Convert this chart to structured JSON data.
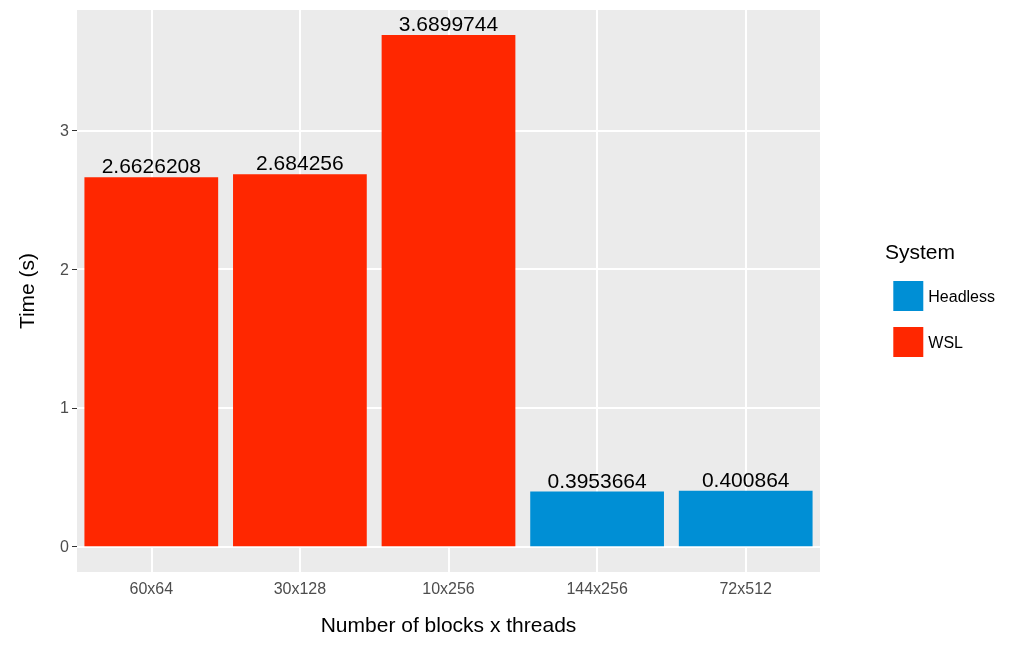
{
  "chart_data": {
    "type": "bar",
    "xlabel": "Number of blocks x threads",
    "ylabel": "Time (s)",
    "legend_title": "System",
    "categories": [
      "60x64",
      "30x128",
      "10x256",
      "144x256",
      "72x512"
    ],
    "series": [
      {
        "name": "Headless",
        "color": "#008fd5",
        "values": [
          null,
          null,
          null,
          0.3953664,
          0.400864
        ]
      },
      {
        "name": "WSL",
        "color": "#ff2700",
        "values": [
          2.6626208,
          2.684256,
          3.6899744,
          null,
          null
        ]
      }
    ],
    "stacked": true,
    "ylim": [
      -0.185,
      3.87
    ],
    "yticks": [
      0,
      1,
      2,
      3
    ],
    "grid": true,
    "legend": "right",
    "data_labels": true
  }
}
